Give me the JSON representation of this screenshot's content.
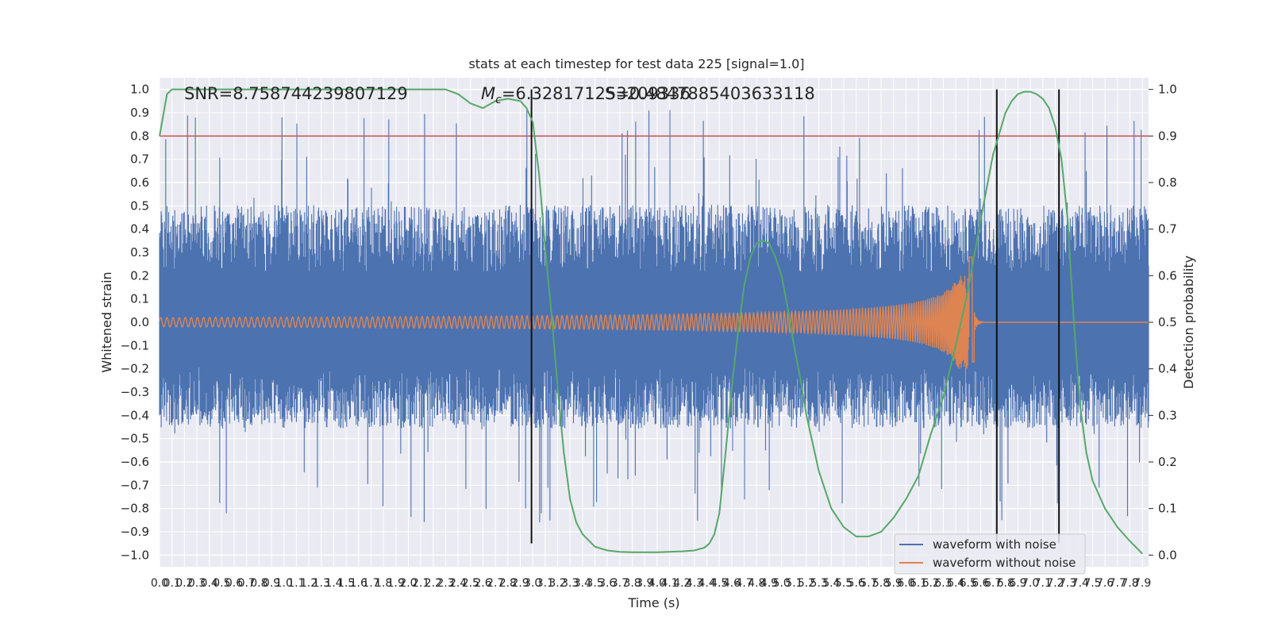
{
  "chart_data": {
    "type": "line",
    "title": "stats at each timestep for test data 225 [signal=1.0]",
    "xlabel": "Time (s)",
    "ylabel": "Whitened strain",
    "y2label": "Detection probability",
    "xlim": [
      0.0,
      7.95
    ],
    "ylim": [
      -1.05,
      1.05
    ],
    "y2lim": [
      -0.025,
      1.025
    ],
    "grid": true,
    "legend_position": "lower-right",
    "x_ticks": [
      "0.0",
      "0.1",
      "0.2",
      "0.3",
      "0.4",
      "0.5",
      "0.6",
      "0.7",
      "0.8",
      "0.9",
      "1.0",
      "1.1",
      "1.2",
      "1.3",
      "1.4",
      "1.5",
      "1.6",
      "1.7",
      "1.8",
      "1.9",
      "2.0",
      "2.1",
      "2.2",
      "2.3",
      "2.4",
      "2.5",
      "2.6",
      "2.7",
      "2.8",
      "2.9",
      "3.0",
      "3.1",
      "3.2",
      "3.3",
      "3.4",
      "3.5",
      "3.6",
      "3.7",
      "3.8",
      "3.9",
      "4.0",
      "4.1",
      "4.2",
      "4.3",
      "4.4",
      "4.5",
      "4.6",
      "4.7",
      "4.8",
      "4.9",
      "5.0",
      "5.1",
      "5.2",
      "5.3",
      "5.4",
      "5.5",
      "5.6",
      "5.7",
      "5.8",
      "5.9",
      "6.0",
      "6.1",
      "6.2",
      "6.3",
      "6.4",
      "6.5",
      "6.6",
      "6.7",
      "6.8",
      "6.9",
      "7.0",
      "7.1",
      "7.2",
      "7.3",
      "7.4",
      "7.5",
      "7.6",
      "7.7",
      "7.8",
      "7.9"
    ],
    "y_ticks": [
      "1.0",
      "0.9",
      "0.8",
      "0.7",
      "0.6",
      "0.5",
      "0.4",
      "0.3",
      "0.2",
      "0.1",
      "0.0",
      "−0.1",
      "−0.2",
      "−0.3",
      "−0.4",
      "−0.5",
      "−0.6",
      "−0.7",
      "−0.8",
      "−0.9",
      "−1.0"
    ],
    "y2_ticks": [
      "1.0",
      "0.9",
      "0.8",
      "0.7",
      "0.6",
      "0.5",
      "0.4",
      "0.3",
      "0.2",
      "0.1",
      "0.0"
    ],
    "annotations": {
      "snr": "SNR=8.758744239807129",
      "mc_symbol": "M",
      "mc_subscript": "c",
      "mc_value": "=6.328171253209336",
      "s_text": "S=0.4847885403633118"
    },
    "threshold": {
      "y2": 0.9,
      "color": "#c44e52"
    },
    "vertical_lines_x": [
      2.99,
      6.73,
      7.23
    ],
    "series": [
      {
        "name": "waveform with noise",
        "color": "#4c72b0",
        "band_envelope": {
          "typical_max": 0.42,
          "typical_min": -0.38,
          "peak_max": 1.0,
          "peak_min": -0.95
        }
      },
      {
        "name": "waveform without noise",
        "color": "#dd8452",
        "chirp": {
          "start_amplitude": 0.02,
          "peak_time": 6.52,
          "peak_value": 0.28,
          "min_value": -0.17,
          "ringdown_end": 6.62
        }
      },
      {
        "name": "detection probability",
        "color": "#55a868",
        "x": [
          0.0,
          0.06,
          0.1,
          0.3,
          0.6,
          1.0,
          1.5,
          2.0,
          2.1,
          2.2,
          2.3,
          2.4,
          2.5,
          2.6,
          2.7,
          2.8,
          2.9,
          2.95,
          3.0,
          3.05,
          3.1,
          3.15,
          3.2,
          3.25,
          3.3,
          3.35,
          3.4,
          3.5,
          3.6,
          3.7,
          3.8,
          4.0,
          4.2,
          4.3,
          4.38,
          4.42,
          4.46,
          4.5,
          4.55,
          4.6,
          4.65,
          4.7,
          4.75,
          4.8,
          4.85,
          4.9,
          4.95,
          5.0,
          5.05,
          5.1,
          5.15,
          5.2,
          5.3,
          5.4,
          5.5,
          5.6,
          5.7,
          5.8,
          5.9,
          6.0,
          6.1,
          6.2,
          6.3,
          6.4,
          6.5,
          6.6,
          6.7,
          6.8,
          6.85,
          6.9,
          6.95,
          7.0,
          7.05,
          7.1,
          7.15,
          7.2,
          7.25,
          7.3,
          7.35,
          7.4,
          7.45,
          7.5,
          7.6,
          7.7,
          7.8,
          7.9
        ],
        "values": [
          0.9,
          0.99,
          1.0,
          1.0,
          1.0,
          1.0,
          1.0,
          1.0,
          1.0,
          1.0,
          1.0,
          0.99,
          0.97,
          0.96,
          0.975,
          0.98,
          0.975,
          0.96,
          0.93,
          0.82,
          0.66,
          0.52,
          0.36,
          0.22,
          0.12,
          0.07,
          0.045,
          0.018,
          0.01,
          0.007,
          0.006,
          0.006,
          0.008,
          0.01,
          0.016,
          0.025,
          0.045,
          0.09,
          0.22,
          0.36,
          0.48,
          0.58,
          0.64,
          0.67,
          0.675,
          0.67,
          0.64,
          0.6,
          0.53,
          0.45,
          0.38,
          0.3,
          0.18,
          0.1,
          0.06,
          0.04,
          0.04,
          0.05,
          0.08,
          0.12,
          0.17,
          0.26,
          0.34,
          0.45,
          0.57,
          0.72,
          0.86,
          0.95,
          0.975,
          0.99,
          0.995,
          0.995,
          0.99,
          0.98,
          0.96,
          0.92,
          0.85,
          0.72,
          0.5,
          0.32,
          0.22,
          0.16,
          0.1,
          0.06,
          0.03,
          0.003
        ]
      }
    ]
  }
}
